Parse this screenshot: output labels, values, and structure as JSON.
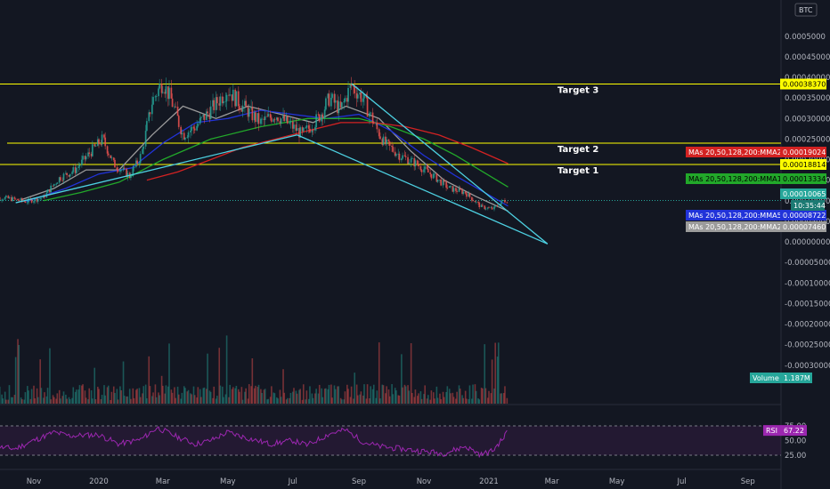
{
  "chart_data": {
    "type": "candlestick",
    "axis_unit": "BTC",
    "price_axis_labels": [
      "0.0005000",
      "0.00045000",
      "0.00040000",
      "0.00035000",
      "0.00030000",
      "0.00025000",
      "0.00020000",
      "0.00015000",
      "0.00010000",
      "0.00005000",
      "0.00000000",
      "-0.00005000",
      "-0.00010000",
      "-0.00015000",
      "-0.00020000",
      "-0.00025000",
      "-0.00030000"
    ],
    "price_axis_values": [
      0.0005,
      0.00045,
      0.0004,
      0.00035,
      0.0003,
      0.00025,
      0.0002,
      0.00015,
      0.0001,
      5e-05,
      0,
      -5e-05,
      -0.0001,
      -0.00015,
      -0.0002,
      -0.00025,
      -0.0003
    ],
    "time_axis": [
      {
        "label": "Nov",
        "date": "2019-11-01"
      },
      {
        "label": "2020",
        "date": "2020-01-01"
      },
      {
        "label": "Mar",
        "date": "2020-03-01"
      },
      {
        "label": "May",
        "date": "2020-05-01"
      },
      {
        "label": "Jul",
        "date": "2020-07-01"
      },
      {
        "label": "Sep",
        "date": "2020-09-01"
      },
      {
        "label": "Nov",
        "date": "2020-11-01"
      },
      {
        "label": "2021",
        "date": "2021-01-01"
      },
      {
        "label": "Mar",
        "date": "2021-03-01"
      },
      {
        "label": "May",
        "date": "2021-05-01"
      },
      {
        "label": "Jul",
        "date": "2021-07-01"
      },
      {
        "label": "Sep",
        "date": "2021-09-01"
      }
    ],
    "price_path": [
      [
        "2019-09-20",
        0.00011
      ],
      [
        "2019-10-10",
        0.000105
      ],
      [
        "2019-10-25",
        9.8e-05
      ],
      [
        "2019-11-10",
        0.000108
      ],
      [
        "2019-11-25",
        0.000155
      ],
      [
        "2019-12-10",
        0.000175
      ],
      [
        "2019-12-25",
        0.00022
      ],
      [
        "2020-01-05",
        0.00025
      ],
      [
        "2020-01-15",
        0.00019
      ],
      [
        "2020-01-30",
        0.00016
      ],
      [
        "2020-02-10",
        0.00021
      ],
      [
        "2020-02-20",
        0.00034
      ],
      [
        "2020-03-01",
        0.00039
      ],
      [
        "2020-03-10",
        0.00034
      ],
      [
        "2020-03-20",
        0.00026
      ],
      [
        "2020-04-01",
        0.00028
      ],
      [
        "2020-04-15",
        0.00032
      ],
      [
        "2020-05-01",
        0.00037
      ],
      [
        "2020-05-15",
        0.00033
      ],
      [
        "2020-06-01",
        0.00029
      ],
      [
        "2020-06-15",
        0.00031
      ],
      [
        "2020-07-01",
        0.00028
      ],
      [
        "2020-07-10",
        0.00026
      ],
      [
        "2020-07-25",
        0.0003
      ],
      [
        "2020-08-05",
        0.00035
      ],
      [
        "2020-08-15",
        0.00032
      ],
      [
        "2020-08-25",
        0.00038
      ],
      [
        "2020-09-05",
        0.00035
      ],
      [
        "2020-09-15",
        0.00029
      ],
      [
        "2020-09-25",
        0.00024
      ],
      [
        "2020-10-10",
        0.00021
      ],
      [
        "2020-10-25",
        0.00019
      ],
      [
        "2020-11-10",
        0.00016
      ],
      [
        "2020-11-25",
        0.00013
      ],
      [
        "2020-12-10",
        0.00012
      ],
      [
        "2020-12-25",
        8.5e-05
      ],
      [
        "2021-01-05",
        8e-05
      ],
      [
        "2021-01-15",
        0.0001
      ],
      [
        "2021-01-19",
        0.0001
      ]
    ],
    "ma_lines": [
      {
        "name": "MAs 20,50,128,200:MMA20",
        "color": "#9b9b9b",
        "last": "0.00007460",
        "points": [
          [
            "2019-10-20",
            0.000102
          ],
          [
            "2019-11-20",
            0.00013
          ],
          [
            "2019-12-20",
            0.000175
          ],
          [
            "2020-01-20",
            0.000175
          ],
          [
            "2020-02-20",
            0.00026
          ],
          [
            "2020-03-20",
            0.00033
          ],
          [
            "2020-04-20",
            0.0003
          ],
          [
            "2020-05-20",
            0.00033
          ],
          [
            "2020-06-20",
            0.00031
          ],
          [
            "2020-07-20",
            0.00029
          ],
          [
            "2020-08-20",
            0.00033
          ],
          [
            "2020-09-20",
            0.0003
          ],
          [
            "2020-10-20",
            0.00022
          ],
          [
            "2020-11-20",
            0.00015
          ],
          [
            "2020-12-20",
            0.00011
          ],
          [
            "2021-01-19",
            7.46e-05
          ]
        ]
      },
      {
        "name": "MAs 20,50,128,200:MMA50",
        "color": "#2133d9",
        "last": "0.00008722",
        "points": [
          [
            "2019-10-25",
            9.8e-05
          ],
          [
            "2019-12-01",
            0.00013
          ],
          [
            "2020-01-01",
            0.000165
          ],
          [
            "2020-02-01",
            0.00018
          ],
          [
            "2020-03-01",
            0.00024
          ],
          [
            "2020-04-01",
            0.00029
          ],
          [
            "2020-05-01",
            0.0003
          ],
          [
            "2020-06-01",
            0.00032
          ],
          [
            "2020-07-01",
            0.00031
          ],
          [
            "2020-08-01",
            0.0003
          ],
          [
            "2020-09-01",
            0.00031
          ],
          [
            "2020-10-01",
            0.00027
          ],
          [
            "2020-11-01",
            0.00021
          ],
          [
            "2020-12-01",
            0.00016
          ],
          [
            "2021-01-19",
            8.72e-05
          ]
        ]
      },
      {
        "name": "MAs 20,50,128,200:MMA128",
        "color": "#22a82a",
        "last": "0.00013334",
        "points": [
          [
            "2019-11-10",
            0.0001
          ],
          [
            "2019-12-15",
            0.00012
          ],
          [
            "2020-01-20",
            0.000145
          ],
          [
            "2020-03-01",
            0.0002
          ],
          [
            "2020-04-15",
            0.00025
          ],
          [
            "2020-06-01",
            0.00028
          ],
          [
            "2020-07-15",
            0.0003
          ],
          [
            "2020-09-01",
            0.0003
          ],
          [
            "2020-10-01",
            0.00028
          ],
          [
            "2020-11-01",
            0.00025
          ],
          [
            "2020-12-01",
            0.00021
          ],
          [
            "2021-01-19",
            0.00013334
          ]
        ]
      },
      {
        "name": "MAs 20,50,128,200:MMA200",
        "color": "#d32222",
        "last": "0.00019024",
        "points": [
          [
            "2020-02-15",
            0.00015
          ],
          [
            "2020-03-15",
            0.00017
          ],
          [
            "2020-04-15",
            0.0002
          ],
          [
            "2020-05-15",
            0.00023
          ],
          [
            "2020-06-15",
            0.00025
          ],
          [
            "2020-07-15",
            0.00027
          ],
          [
            "2020-08-15",
            0.00029
          ],
          [
            "2020-09-15",
            0.00029
          ],
          [
            "2020-10-15",
            0.00028
          ],
          [
            "2020-11-15",
            0.00026
          ],
          [
            "2020-12-15",
            0.00023
          ],
          [
            "2021-01-19",
            0.00019024
          ]
        ]
      }
    ],
    "horizontal_levels": [
      {
        "label": "Target 3",
        "value": 0.0003837,
        "tag": "0.00038370",
        "color": "#ffff00"
      },
      {
        "label": "Target 2",
        "value": 0.00024,
        "tag": "",
        "color": "#ffff00"
      },
      {
        "label": "Target 1",
        "value": 0.00018814,
        "tag": "0.00018814",
        "color": "#ffff00"
      }
    ],
    "trendlines": [
      {
        "color": "#4dd0e1",
        "from": [
          "2019-10-15",
          9.5e-05
        ],
        "to": [
          "2020-07-05",
          0.00026
        ]
      },
      {
        "color": "#4dd0e1",
        "from": [
          "2020-07-05",
          0.00026
        ],
        "to": [
          "2021-02-25",
          -5e-06
        ]
      },
      {
        "color": "#4dd0e1",
        "from": [
          "2020-08-25",
          0.000385
        ],
        "to": [
          "2021-02-25",
          -5e-06
        ]
      }
    ],
    "current_price": {
      "value": "0.00010065",
      "countdown": "10:35:44",
      "color": "#26a69a"
    },
    "volume": {
      "label": "Volume",
      "value": "1.187M",
      "color": "#26a69a"
    },
    "rsi": {
      "label": "RSI",
      "value": "67.22",
      "levels": [
        "75.00",
        "50.00",
        "25.00"
      ],
      "level_values": [
        75,
        50,
        25
      ],
      "color": "#9c27b0",
      "points": [
        [
          "2019-09-20",
          40
        ],
        [
          "2019-10-15",
          36
        ],
        [
          "2019-11-01",
          50
        ],
        [
          "2019-11-20",
          64
        ],
        [
          "2019-12-05",
          58
        ],
        [
          "2020-01-01",
          60
        ],
        [
          "2020-01-20",
          44
        ],
        [
          "2020-02-10",
          52
        ],
        [
          "2020-02-25",
          72
        ],
        [
          "2020-03-15",
          56
        ],
        [
          "2020-04-01",
          44
        ],
        [
          "2020-04-15",
          50
        ],
        [
          "2020-05-01",
          64
        ],
        [
          "2020-05-20",
          54
        ],
        [
          "2020-06-10",
          44
        ],
        [
          "2020-07-01",
          50
        ],
        [
          "2020-07-15",
          42
        ],
        [
          "2020-08-05",
          62
        ],
        [
          "2020-08-20",
          68
        ],
        [
          "2020-09-05",
          48
        ],
        [
          "2020-09-20",
          40
        ],
        [
          "2020-10-10",
          36
        ],
        [
          "2020-10-30",
          32
        ],
        [
          "2020-11-20",
          28
        ],
        [
          "2020-12-10",
          40
        ],
        [
          "2020-12-25",
          26
        ],
        [
          "2021-01-05",
          33
        ],
        [
          "2021-01-15",
          55
        ],
        [
          "2021-01-19",
          67.22
        ]
      ]
    }
  }
}
